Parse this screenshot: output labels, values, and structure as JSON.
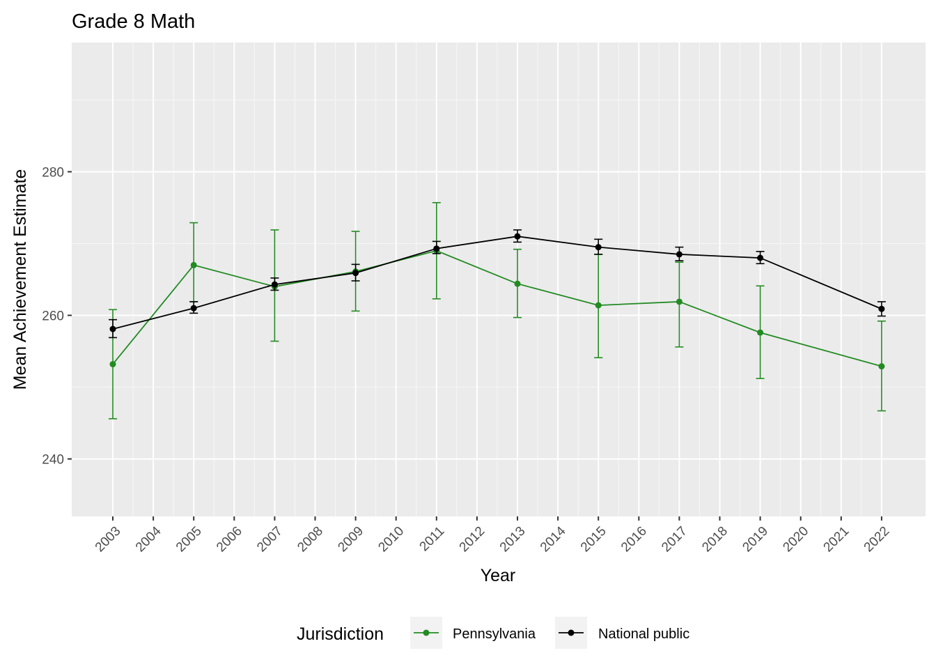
{
  "chart_data": {
    "type": "line",
    "title": "Grade 8 Math",
    "xlabel": "Year",
    "ylabel": "Mean Achievement Estimate",
    "x_ticks": [
      "2003",
      "2004",
      "2005",
      "2006",
      "2007",
      "2008",
      "2009",
      "2010",
      "2011",
      "2012",
      "2013",
      "2014",
      "2015",
      "2016",
      "2017",
      "2018",
      "2019",
      "2020",
      "2021",
      "2022"
    ],
    "y_ticks": [
      240,
      260,
      280
    ],
    "ylim": [
      232,
      298
    ],
    "legend_title": "Jurisdiction",
    "legend_position": "bottom",
    "series": [
      {
        "name": "Pennsylvania",
        "color": "#228b22",
        "points": [
          {
            "x": "2003",
            "y": 253.2,
            "lo": 245.6,
            "hi": 260.8
          },
          {
            "x": "2005",
            "y": 267.0,
            "lo": 261.9,
            "hi": 272.9
          },
          {
            "x": "2007",
            "y": 264.0,
            "lo": 256.4,
            "hi": 271.9
          },
          {
            "x": "2009",
            "y": 266.1,
            "lo": 260.6,
            "hi": 271.7
          },
          {
            "x": "2011",
            "y": 269.0,
            "lo": 262.3,
            "hi": 275.7
          },
          {
            "x": "2013",
            "y": 264.4,
            "lo": 259.7,
            "hi": 269.2
          },
          {
            "x": "2015",
            "y": 261.4,
            "lo": 254.1,
            "hi": 268.5
          },
          {
            "x": "2017",
            "y": 261.9,
            "lo": 255.6,
            "hi": 267.4
          },
          {
            "x": "2019",
            "y": 257.6,
            "lo": 251.2,
            "hi": 264.1
          },
          {
            "x": "2022",
            "y": 252.9,
            "lo": 246.7,
            "hi": 259.2
          }
        ]
      },
      {
        "name": "National public",
        "color": "#000000",
        "points": [
          {
            "x": "2003",
            "y": 258.1,
            "lo": 256.9,
            "hi": 259.4
          },
          {
            "x": "2005",
            "y": 261.0,
            "lo": 260.3,
            "hi": 261.9
          },
          {
            "x": "2007",
            "y": 264.3,
            "lo": 263.5,
            "hi": 265.2
          },
          {
            "x": "2009",
            "y": 265.9,
            "lo": 264.8,
            "hi": 267.1
          },
          {
            "x": "2011",
            "y": 269.3,
            "lo": 268.6,
            "hi": 270.3
          },
          {
            "x": "2013",
            "y": 271.0,
            "lo": 270.2,
            "hi": 271.9
          },
          {
            "x": "2015",
            "y": 269.5,
            "lo": 268.5,
            "hi": 270.6
          },
          {
            "x": "2017",
            "y": 268.5,
            "lo": 267.6,
            "hi": 269.5
          },
          {
            "x": "2019",
            "y": 268.0,
            "lo": 267.2,
            "hi": 268.9
          },
          {
            "x": "2022",
            "y": 260.9,
            "lo": 259.9,
            "hi": 261.9
          }
        ]
      }
    ]
  }
}
